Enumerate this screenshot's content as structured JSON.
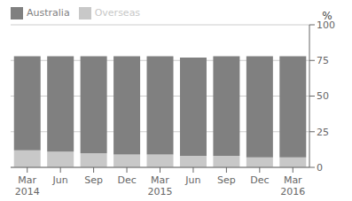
{
  "chart_data": {
    "type": "bar",
    "stacked": true,
    "categories": [
      "Mar\n2014",
      "Jun",
      "Sep",
      "Dec",
      "Mar\n2015",
      "Jun",
      "Sep",
      "Dec",
      "Mar\n2016"
    ],
    "series": [
      {
        "name": "Overseas",
        "color": "#c8c8c8",
        "values": [
          12,
          11,
          10,
          9,
          9,
          8,
          8,
          7,
          7
        ]
      },
      {
        "name": "Australia",
        "color": "#808080",
        "values": [
          66,
          67,
          68,
          69,
          69,
          69,
          70,
          71,
          71
        ]
      }
    ],
    "ylabel": "%",
    "ylim": [
      0,
      100
    ],
    "yticks": [
      0,
      25,
      50,
      75,
      100
    ],
    "grid": true,
    "legend": "upper left"
  }
}
